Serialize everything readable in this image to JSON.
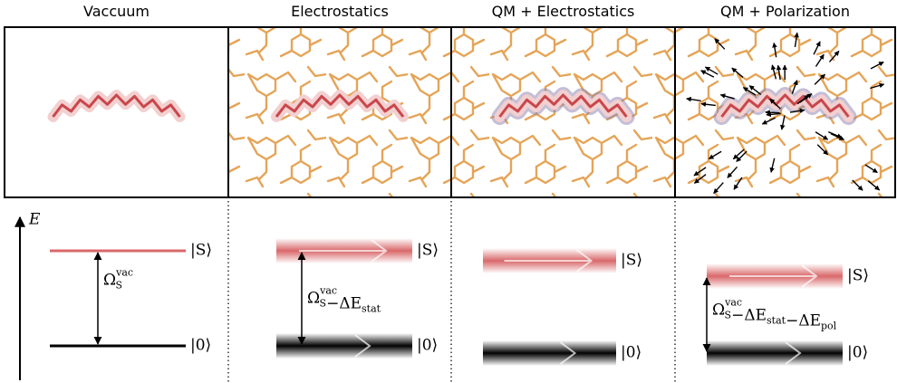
{
  "axis_label": "E",
  "panels": [
    {
      "title": "Vaccuum",
      "excited_label": "|S⟩",
      "ground_label": "|0⟩",
      "gap_label": [
        {
          "base": "Ω",
          "sub": "S",
          "sup": "vac"
        }
      ]
    },
    {
      "title": "Electrostatics",
      "excited_label": "|S⟩",
      "ground_label": "|0⟩",
      "gap_label": [
        {
          "base": "Ω",
          "sub": "S",
          "sup": "vac"
        },
        {
          "base": "−ΔE",
          "sub": "stat"
        }
      ]
    },
    {
      "title": "QM + Electrostatics",
      "excited_label": "|S⟩",
      "ground_label": "|0⟩"
    },
    {
      "title": "QM + Polarization",
      "excited_label": "|S⟩",
      "ground_label": "|0⟩",
      "gap_label": [
        {
          "base": "Ω",
          "sub": "S",
          "sup": "vac"
        },
        {
          "base": "−ΔE",
          "sub": "stat"
        },
        {
          "base": "−ΔE",
          "sub": "pol"
        }
      ]
    }
  ]
}
